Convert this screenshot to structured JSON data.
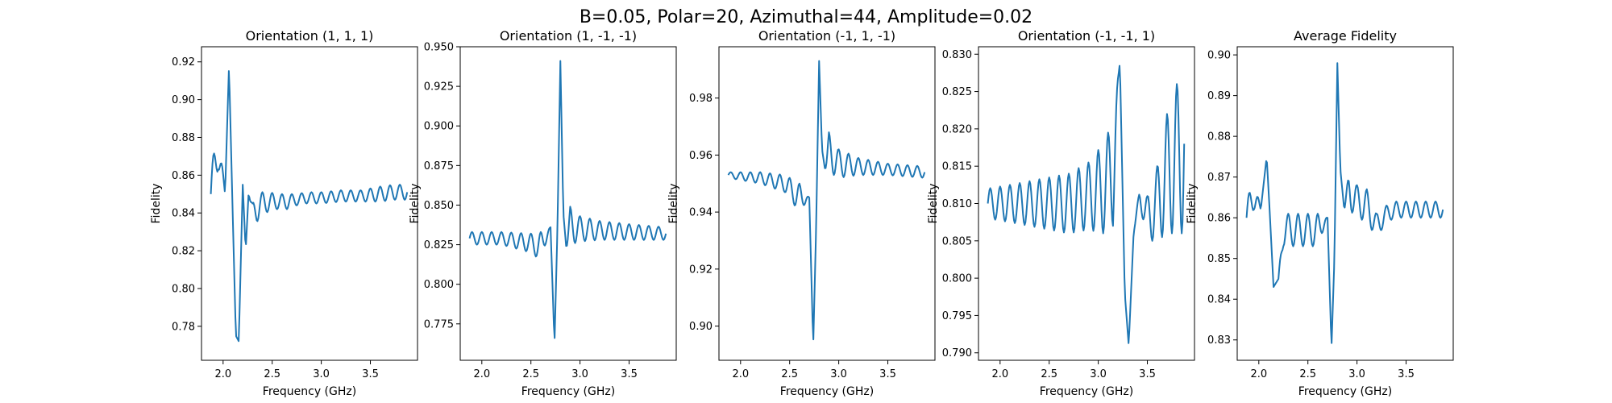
{
  "figure": {
    "suptitle": "B=0.05, Polar=20, Azimuthal=44, Amplitude=0.02",
    "colors": {
      "line": "#1f77b4",
      "axes": "#000000",
      "background": "#ffffff"
    }
  },
  "chart_data": [
    {
      "type": "line",
      "title": "Orientation (1, 1, 1)",
      "xlabel": "Frequency (GHz)",
      "ylabel": "Fidelity",
      "xlim": [
        1.78,
        3.98
      ],
      "ylim": [
        0.762,
        0.928
      ],
      "xticks": [
        "2.0",
        "2.5",
        "3.0",
        "3.5"
      ],
      "yticks": [
        "0.78",
        "0.80",
        "0.82",
        "0.84",
        "0.86",
        "0.88",
        "0.90",
        "0.92"
      ],
      "x": [
        1.875,
        1.95,
        2.02,
        2.06,
        2.1,
        2.13,
        2.16,
        2.2,
        2.23,
        2.26,
        2.3,
        2.34,
        2.4,
        2.47,
        2.55,
        2.65,
        2.75,
        2.85,
        3.0,
        3.2,
        3.4,
        3.6,
        3.75,
        3.875
      ],
      "envelope": [
        0.012,
        0.012,
        0.0,
        0.0,
        0.0,
        0.0,
        0.0,
        0.0,
        0.0,
        0.0,
        0.006,
        0.008,
        0.006,
        0.005,
        0.004,
        0.004,
        0.003,
        0.003,
        0.003,
        0.003,
        0.003,
        0.004,
        0.004,
        0.004
      ],
      "baseline": [
        0.85,
        0.875,
        0.85,
        0.918,
        0.835,
        0.775,
        0.772,
        0.855,
        0.82,
        0.851,
        0.839,
        0.843,
        0.845,
        0.846,
        0.846,
        0.846,
        0.847,
        0.848,
        0.848,
        0.849,
        0.849,
        0.85,
        0.851,
        0.851
      ],
      "osc_period": 0.1
    },
    {
      "type": "line",
      "title": "Orientation (1, -1, -1)",
      "xlabel": "Frequency (GHz)",
      "ylabel": "Fidelity",
      "xlim": [
        1.78,
        3.98
      ],
      "ylim": [
        0.752,
        0.95
      ],
      "xticks": [
        "2.0",
        "2.5",
        "3.0",
        "3.5"
      ],
      "yticks": [
        "0.775",
        "0.800",
        "0.825",
        "0.850",
        "0.875",
        "0.900",
        "0.925",
        "0.950"
      ],
      "x": [
        1.875,
        2.2,
        2.5,
        2.6,
        2.7,
        2.74,
        2.77,
        2.8,
        2.83,
        2.86,
        2.9,
        2.95,
        3.0,
        3.2,
        3.5,
        3.875
      ],
      "envelope": [
        0.004,
        0.004,
        0.006,
        0.009,
        0.0,
        0.0,
        0.0,
        0.0,
        0.0,
        0.0,
        0.012,
        0.01,
        0.008,
        0.006,
        0.005,
        0.004
      ],
      "baseline": [
        0.829,
        0.829,
        0.826,
        0.824,
        0.836,
        0.762,
        0.835,
        0.941,
        0.845,
        0.823,
        0.837,
        0.836,
        0.835,
        0.834,
        0.833,
        0.832
      ],
      "osc_period": 0.1
    },
    {
      "type": "line",
      "title": "Orientation (-1, 1, -1)",
      "xlabel": "Frequency (GHz)",
      "ylabel": "Fidelity",
      "xlim": [
        1.78,
        3.98
      ],
      "ylim": [
        0.888,
        0.998
      ],
      "xticks": [
        "2.0",
        "2.5",
        "3.0",
        "3.5"
      ],
      "yticks": [
        "0.90",
        "0.92",
        "0.94",
        "0.96",
        "0.98"
      ],
      "x": [
        1.875,
        2.2,
        2.45,
        2.6,
        2.7,
        2.74,
        2.77,
        2.8,
        2.83,
        2.86,
        2.9,
        2.95,
        3.0,
        3.2,
        3.5,
        3.875
      ],
      "envelope": [
        0.001,
        0.002,
        0.003,
        0.005,
        0.0,
        0.0,
        0.0,
        0.0,
        0.0,
        0.0,
        0.007,
        0.006,
        0.005,
        0.003,
        0.002,
        0.002
      ],
      "baseline": [
        0.953,
        0.952,
        0.95,
        0.945,
        0.945,
        0.893,
        0.935,
        0.993,
        0.962,
        0.955,
        0.961,
        0.959,
        0.957,
        0.956,
        0.955,
        0.954
      ],
      "osc_period": 0.1
    },
    {
      "type": "line",
      "title": "Orientation (-1, -1, 1)",
      "xlabel": "Frequency (GHz)",
      "ylabel": "Fidelity",
      "xlim": [
        1.78,
        3.98
      ],
      "ylim": [
        0.789,
        0.831
      ],
      "xticks": [
        "2.0",
        "2.5",
        "3.0",
        "3.5"
      ],
      "yticks": [
        "0.790",
        "0.795",
        "0.800",
        "0.805",
        "0.810",
        "0.815",
        "0.820",
        "0.825",
        "0.830"
      ],
      "x": [
        1.875,
        2.1,
        2.3,
        2.5,
        2.7,
        2.9,
        3.05,
        3.15,
        3.22,
        3.27,
        3.31,
        3.36,
        3.42,
        3.5,
        3.6,
        3.7,
        3.8,
        3.875
      ],
      "envelope": [
        0.002,
        0.0025,
        0.003,
        0.0035,
        0.004,
        0.0045,
        0.006,
        0.007,
        0.0,
        0.0,
        0.0,
        0.0,
        0.001,
        0.003,
        0.005,
        0.008,
        0.01,
        0.012
      ],
      "baseline": [
        0.81,
        0.81,
        0.81,
        0.81,
        0.81,
        0.811,
        0.812,
        0.814,
        0.829,
        0.798,
        0.791,
        0.806,
        0.811,
        0.808,
        0.81,
        0.814,
        0.816,
        0.818
      ],
      "osc_period": 0.1
    },
    {
      "type": "line",
      "title": "Average Fidelity",
      "xlabel": "Frequency (GHz)",
      "ylabel": "Fidelity",
      "xlim": [
        1.78,
        3.98
      ],
      "ylim": [
        0.825,
        0.902
      ],
      "xticks": [
        "2.0",
        "2.5",
        "3.0",
        "3.5"
      ],
      "yticks": [
        "0.83",
        "0.84",
        "0.85",
        "0.86",
        "0.87",
        "0.88",
        "0.89",
        "0.90"
      ],
      "x": [
        1.875,
        1.95,
        2.02,
        2.08,
        2.11,
        2.15,
        2.2,
        2.25,
        2.4,
        2.55,
        2.6,
        2.7,
        2.74,
        2.77,
        2.8,
        2.83,
        2.87,
        2.92,
        3.0,
        3.1,
        3.2,
        3.3,
        3.4,
        3.6,
        3.875
      ],
      "envelope": [
        0.004,
        0.004,
        0.0,
        0.0,
        0.0,
        0.0,
        0.0,
        0.004,
        0.004,
        0.004,
        0.004,
        0.0,
        0.0,
        0.0,
        0.0,
        0.0,
        0.0,
        0.005,
        0.004,
        0.004,
        0.003,
        0.002,
        0.002,
        0.002,
        0.002
      ],
      "baseline": [
        0.86,
        0.866,
        0.862,
        0.875,
        0.862,
        0.843,
        0.845,
        0.857,
        0.857,
        0.857,
        0.857,
        0.86,
        0.828,
        0.85,
        0.898,
        0.872,
        0.862,
        0.867,
        0.864,
        0.863,
        0.858,
        0.861,
        0.862,
        0.862,
        0.862
      ],
      "osc_period": 0.1
    }
  ]
}
